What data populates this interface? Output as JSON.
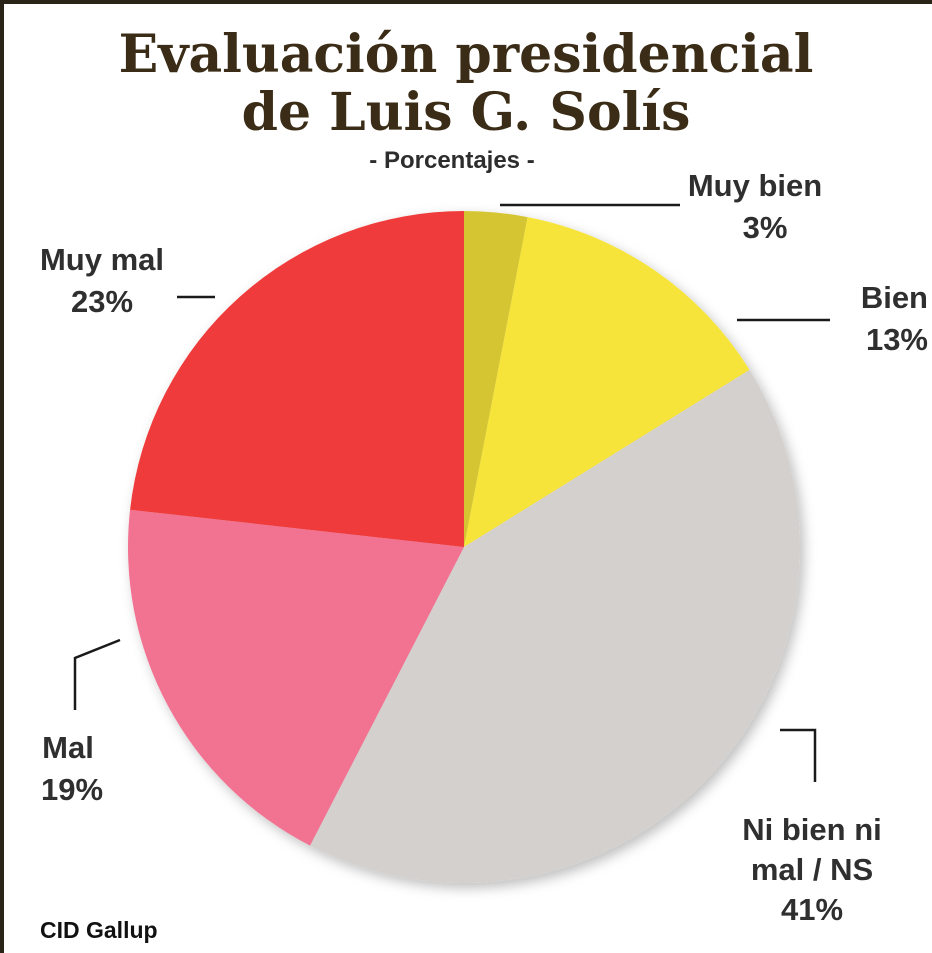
{
  "chart_data": {
    "type": "pie",
    "title_lines": [
      "Evaluación presidencial",
      "de Luis G. Solís"
    ],
    "subtitle": "- Porcentajes -",
    "source": "CID Gallup",
    "slices": [
      {
        "label": "Muy bien",
        "value": 3,
        "value_text": "3%",
        "color": "#d6c530"
      },
      {
        "label": "Bien",
        "value": 13,
        "value_text": "13%",
        "color": "#f6e43a"
      },
      {
        "label_lines": [
          "Ni bien ni",
          "mal / NS"
        ],
        "value": 41,
        "value_text": "41%",
        "color": "#d4d0cd"
      },
      {
        "label": "Mal",
        "value": 19,
        "value_text": "19%",
        "color": "#f27292"
      },
      {
        "label": "Muy mal",
        "value": 23,
        "value_text": "23%",
        "color": "#ef3b3a"
      }
    ]
  }
}
